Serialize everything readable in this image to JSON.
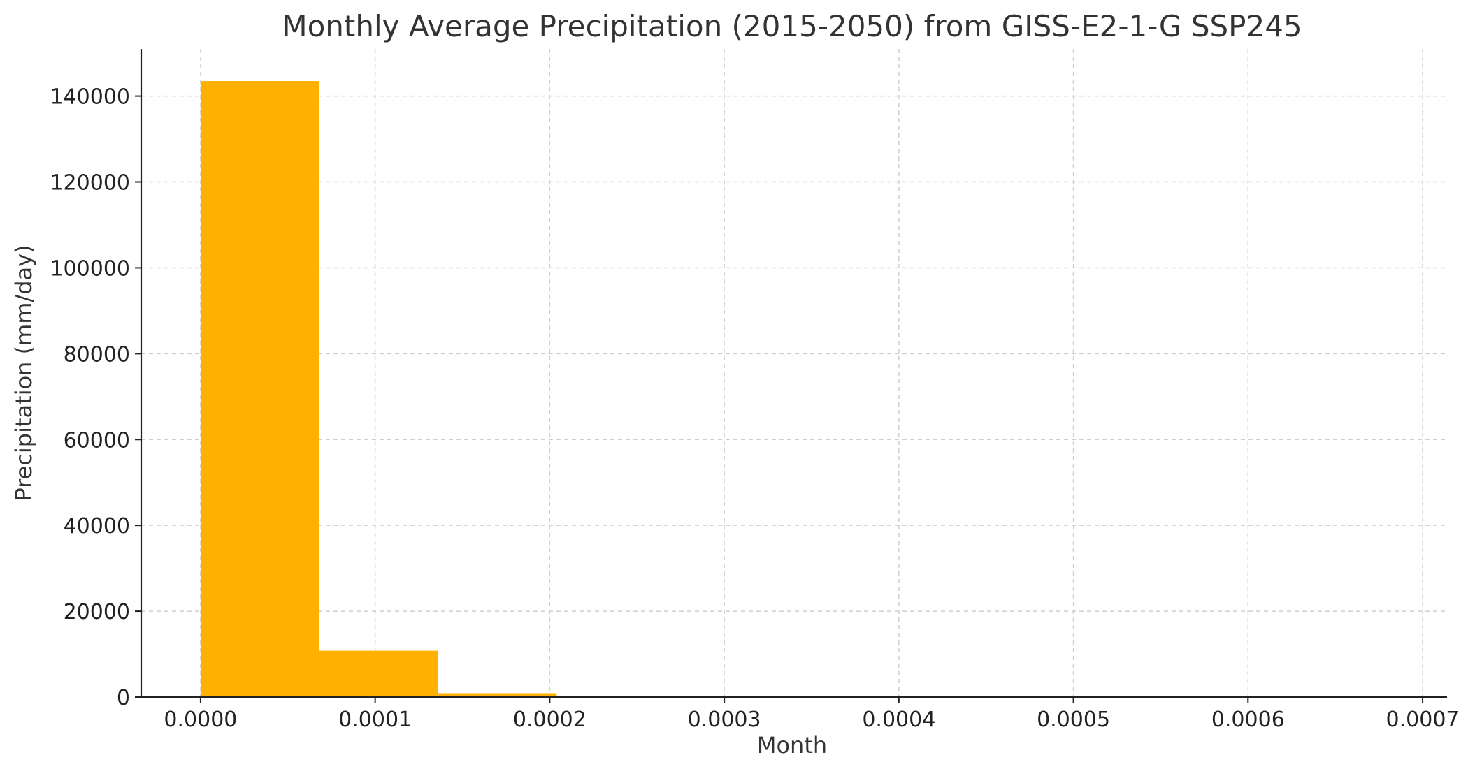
{
  "colors": {
    "bar": "#ffb000"
  },
  "chart_data": {
    "type": "bar",
    "title": "Monthly Average Precipitation (2015-2050) from GISS-E2-1-G SSP245",
    "xlabel": "Month",
    "ylabel": "Precipitation (mm/day)",
    "xlim": [
      -3.4e-05,
      0.000714
    ],
    "ylim": [
      0,
      151000
    ],
    "grid": true,
    "xticks": [
      0.0,
      0.0001,
      0.0002,
      0.0003,
      0.0004,
      0.0005,
      0.0006,
      0.0007
    ],
    "xtick_labels": [
      "0.0000",
      "0.0001",
      "0.0002",
      "0.0003",
      "0.0004",
      "0.0005",
      "0.0006",
      "0.0007"
    ],
    "yticks": [
      0,
      20000,
      40000,
      60000,
      80000,
      100000,
      120000,
      140000
    ],
    "ytick_labels": [
      "0",
      "20000",
      "40000",
      "60000",
      "80000",
      "100000",
      "120000",
      "140000"
    ],
    "bins": [
      {
        "x0": 0.0,
        "x1": 6.8e-05,
        "value": 143500
      },
      {
        "x0": 6.8e-05,
        "x1": 0.000136,
        "value": 10800
      },
      {
        "x0": 0.000136,
        "x1": 0.000204,
        "value": 900
      },
      {
        "x0": 0.000204,
        "x1": 0.000272,
        "value": 60
      },
      {
        "x0": 0.000272,
        "x1": 0.00034,
        "value": 10
      },
      {
        "x0": 0.00034,
        "x1": 0.000408,
        "value": 3
      },
      {
        "x0": 0.000408,
        "x1": 0.000476,
        "value": 1
      },
      {
        "x0": 0.000476,
        "x1": 0.000544,
        "value": 1
      },
      {
        "x0": 0.000544,
        "x1": 0.000612,
        "value": 0
      },
      {
        "x0": 0.000612,
        "x1": 0.00068,
        "value": 1
      }
    ]
  }
}
